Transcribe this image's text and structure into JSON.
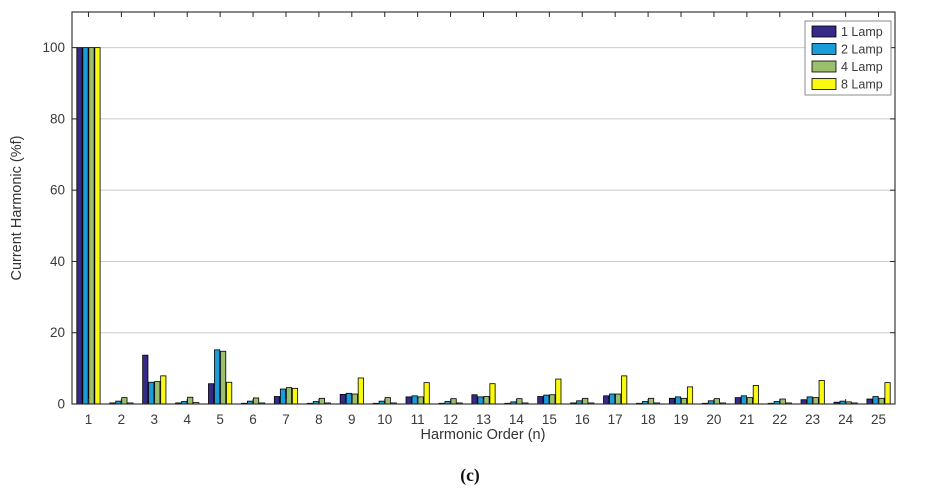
{
  "figure": {
    "caption": "(c)"
  },
  "chart_data": {
    "type": "bar",
    "title": "",
    "xlabel": "Harmonic Order (n)",
    "ylabel": "Current Harmonic (%f)",
    "categories": [
      1,
      2,
      3,
      4,
      5,
      6,
      7,
      8,
      9,
      10,
      11,
      12,
      13,
      14,
      15,
      16,
      17,
      18,
      19,
      20,
      21,
      22,
      23,
      24,
      25
    ],
    "series": [
      {
        "name": "1 Lamp",
        "color": "#352A87",
        "values": [
          100,
          0.3,
          13.7,
          0.3,
          5.7,
          0.2,
          2.1,
          0.2,
          2.7,
          0.2,
          2.0,
          0.2,
          2.6,
          0.2,
          2.1,
          0.3,
          2.3,
          0.2,
          1.6,
          0.2,
          1.8,
          0.2,
          1.2,
          0.5,
          1.4
        ]
      },
      {
        "name": "2 Lamp",
        "color": "#199CD8",
        "values": [
          100,
          0.8,
          6.1,
          0.7,
          15.2,
          0.8,
          4.2,
          0.7,
          3.0,
          0.8,
          2.3,
          0.7,
          2.0,
          0.6,
          2.5,
          0.9,
          2.8,
          0.7,
          2.0,
          0.9,
          2.3,
          0.7,
          2.0,
          0.8,
          2.1
        ]
      },
      {
        "name": "4 Lamp",
        "color": "#9CBF6E",
        "values": [
          100,
          1.8,
          6.3,
          1.9,
          14.8,
          1.7,
          4.6,
          1.6,
          2.8,
          1.8,
          2.0,
          1.5,
          2.1,
          1.5,
          2.6,
          1.6,
          2.8,
          1.6,
          1.6,
          1.5,
          1.8,
          1.4,
          1.8,
          0.6,
          1.6
        ]
      },
      {
        "name": "8 Lamp",
        "color": "#F9F911",
        "values": [
          100,
          0.3,
          7.9,
          0.4,
          6.1,
          0.3,
          4.4,
          0.3,
          7.3,
          0.3,
          6.0,
          0.3,
          5.7,
          0.3,
          7.0,
          0.3,
          7.9,
          0.3,
          4.8,
          0.3,
          5.2,
          0.3,
          6.6,
          0.3,
          6.0
        ]
      }
    ],
    "ylim": [
      0,
      110
    ],
    "yticks": [
      0,
      20,
      40,
      60,
      80,
      100
    ],
    "grid": true,
    "legend_position": "top-right",
    "axis_color": "#262626",
    "grid_color": "#cbcbcb",
    "bar_edge_color": "#000000",
    "legend_border_color": "#8c8c8c"
  }
}
